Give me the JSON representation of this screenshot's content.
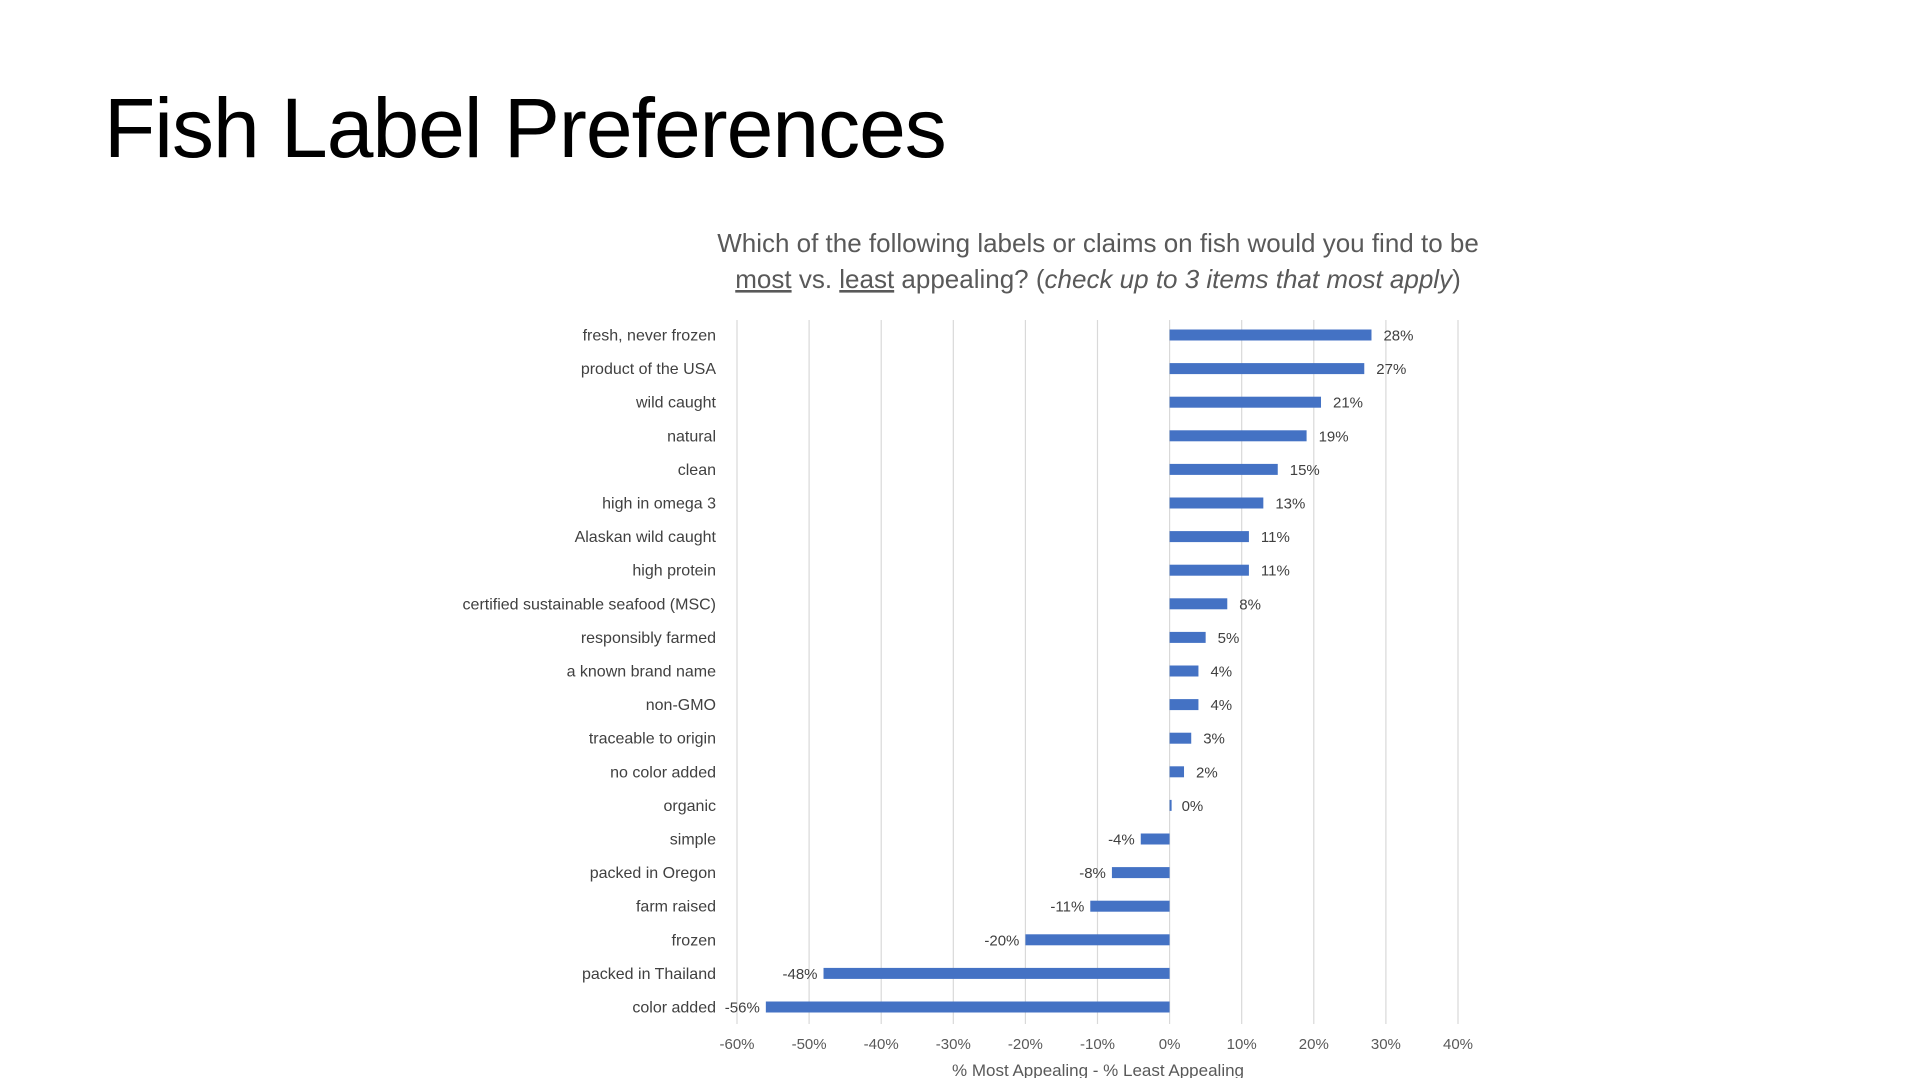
{
  "slide": {
    "title": "Fish Label Preferences"
  },
  "chart_data": {
    "type": "bar",
    "orientation": "horizontal",
    "title_parts": [
      [
        {
          "text": "Which of the following labels or claims on fish would you find to be",
          "style": "normal"
        }
      ],
      [
        {
          "text": "most",
          "style": "underline"
        },
        {
          "text": " vs. ",
          "style": "normal"
        },
        {
          "text": "least",
          "style": "underline"
        },
        {
          "text": " appealing? (",
          "style": "normal"
        },
        {
          "text": "check up to 3 items that most apply",
          "style": "italic"
        },
        {
          "text": ")",
          "style": "normal"
        }
      ]
    ],
    "xlabel": "% Most Appealing - % Least Appealing",
    "ylabel": "",
    "xlim": [
      -60,
      40
    ],
    "xticks": [
      -60,
      -50,
      -40,
      -30,
      -20,
      -10,
      0,
      10,
      20,
      30,
      40
    ],
    "xtick_labels": [
      "-60%",
      "-50%",
      "-40%",
      "-30%",
      "-20%",
      "-10%",
      "0%",
      "10%",
      "20%",
      "30%",
      "40%"
    ],
    "grid": true,
    "bar_color": "#4472C4",
    "categories": [
      "fresh, never frozen",
      "product of the USA",
      "wild caught",
      "natural",
      "clean",
      "high in omega 3",
      "Alaskan wild caught",
      "high protein",
      "certified sustainable seafood (MSC)",
      "responsibly farmed",
      "a known brand name",
      "non-GMO",
      "traceable to origin",
      "no color added",
      "organic",
      "simple",
      "packed in Oregon",
      "farm raised",
      "frozen",
      "packed in Thailand",
      "color added"
    ],
    "values": [
      28,
      27,
      21,
      19,
      15,
      13,
      11,
      11,
      8,
      5,
      4,
      4,
      3,
      2,
      0,
      -4,
      -8,
      -11,
      -20,
      -48,
      -56
    ],
    "value_labels": [
      "28%",
      "27%",
      "21%",
      "19%",
      "15%",
      "13%",
      "11%",
      "11%",
      "8%",
      "5%",
      "4%",
      "4%",
      "3%",
      "2%",
      "0%",
      "-4%",
      "-8%",
      "-11%",
      "-20%",
      "-48%",
      "-56%"
    ]
  }
}
